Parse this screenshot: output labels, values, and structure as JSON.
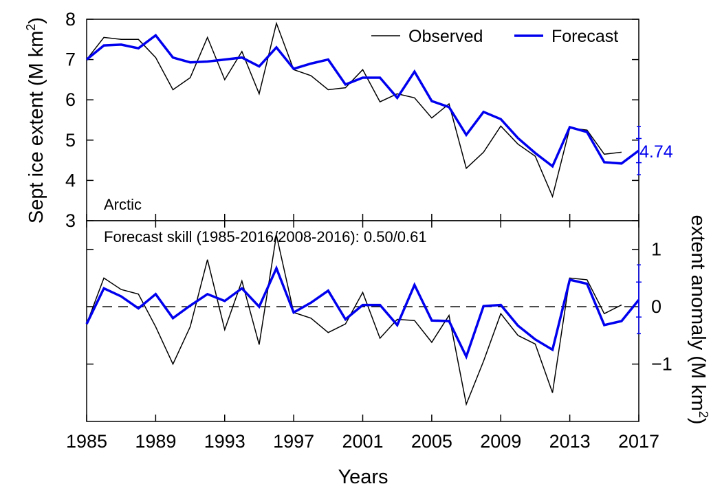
{
  "chart_data": {
    "type": "line",
    "xlabel": "Years",
    "x_ticks": [
      "1985",
      "1989",
      "1993",
      "1997",
      "2001",
      "2005",
      "2009",
      "2013",
      "2017"
    ],
    "xlim": [
      1985,
      2017
    ],
    "legend": {
      "placement": "top-right",
      "entries": [
        "Observed",
        "Forecast"
      ]
    },
    "colors": {
      "observed": "#000000",
      "forecast": "#0000ee",
      "axes": "#000000"
    },
    "top_panel": {
      "ylabel_main": "Sept ice extent (M km",
      "ylabel_sup": "2",
      "ylabel_tail": ")",
      "ylim": [
        3,
        8
      ],
      "y_ticks": [
        "3",
        "4",
        "5",
        "6",
        "7",
        "8"
      ],
      "panel_label": "Arctic",
      "forecast_value_label": "4.74",
      "series": [
        {
          "name": "Observed",
          "x": [
            1985,
            1986,
            1987,
            1988,
            1989,
            1990,
            1991,
            1992,
            1993,
            1994,
            1995,
            1996,
            1997,
            1998,
            1999,
            2000,
            2001,
            2002,
            2003,
            2004,
            2005,
            2006,
            2007,
            2008,
            2009,
            2010,
            2011,
            2012,
            2013,
            2014,
            2015,
            2016
          ],
          "values": [
            7.0,
            7.55,
            7.5,
            7.5,
            7.05,
            6.25,
            6.55,
            7.55,
            6.5,
            7.2,
            6.15,
            7.9,
            6.75,
            6.6,
            6.25,
            6.3,
            6.75,
            5.95,
            6.15,
            6.05,
            5.55,
            5.9,
            4.3,
            4.7,
            5.35,
            4.9,
            4.6,
            3.6,
            5.3,
            5.25,
            4.65,
            4.7
          ]
        },
        {
          "name": "Forecast",
          "x": [
            1985,
            1986,
            1987,
            1988,
            1989,
            1990,
            1991,
            1992,
            1993,
            1994,
            1995,
            1996,
            1997,
            1998,
            1999,
            2000,
            2001,
            2002,
            2003,
            2004,
            2005,
            2006,
            2007,
            2008,
            2009,
            2010,
            2011,
            2012,
            2013,
            2014,
            2015,
            2016,
            2017
          ],
          "values": [
            7.0,
            7.35,
            7.37,
            7.28,
            7.6,
            7.05,
            6.93,
            6.95,
            7.0,
            7.05,
            6.83,
            7.3,
            6.77,
            6.9,
            7.0,
            6.38,
            6.55,
            6.55,
            6.05,
            6.7,
            5.97,
            5.82,
            5.13,
            5.7,
            5.52,
            5.05,
            4.68,
            4.35,
            5.32,
            5.2,
            4.45,
            4.42,
            4.74
          ]
        }
      ],
      "error_bars": [
        {
          "x": 2017,
          "center": 4.74,
          "low": 4.14,
          "high": 5.34
        },
        {
          "x": 2017,
          "center": 4.74,
          "low": 4.44,
          "high": 5.04
        }
      ]
    },
    "bottom_panel": {
      "ylabel_main": "extent anomaly (M km",
      "ylabel_sup": "2",
      "ylabel_tail": ")",
      "ylim": [
        -2.0,
        1.5
      ],
      "y_ticks": [
        "1",
        "0",
        "−1"
      ],
      "y_tick_values": [
        1,
        0,
        -1
      ],
      "skill_text": "Forecast skill (1985-2016/2008-2016): 0.50/0.61",
      "zero_line": "dashed",
      "series": [
        {
          "name": "Observed",
          "x": [
            1985,
            1986,
            1987,
            1988,
            1989,
            1990,
            1991,
            1992,
            1993,
            1994,
            1995,
            1996,
            1997,
            1998,
            1999,
            2000,
            2001,
            2002,
            2003,
            2004,
            2005,
            2006,
            2007,
            2008,
            2009,
            2010,
            2011,
            2012,
            2013,
            2014,
            2015,
            2016
          ],
          "values": [
            -0.3,
            0.5,
            0.3,
            0.22,
            -0.35,
            -1.0,
            -0.35,
            0.82,
            -0.4,
            0.45,
            -0.66,
            1.25,
            -0.1,
            -0.2,
            -0.45,
            -0.3,
            0.25,
            -0.55,
            -0.22,
            -0.24,
            -0.62,
            -0.15,
            -1.7,
            -0.95,
            -0.12,
            -0.5,
            -0.65,
            -1.5,
            0.5,
            0.47,
            -0.12,
            0.03
          ]
        },
        {
          "name": "Forecast",
          "x": [
            1985,
            1986,
            1987,
            1988,
            1989,
            1990,
            1991,
            1992,
            1993,
            1994,
            1995,
            1996,
            1997,
            1998,
            1999,
            2000,
            2001,
            2002,
            2003,
            2004,
            2005,
            2006,
            2007,
            2008,
            2009,
            2010,
            2011,
            2012,
            2013,
            2014,
            2015,
            2016,
            2017
          ],
          "values": [
            -0.3,
            0.32,
            0.18,
            -0.03,
            0.22,
            -0.2,
            0.02,
            0.22,
            0.1,
            0.32,
            0.0,
            0.67,
            -0.1,
            0.07,
            0.28,
            -0.22,
            0.03,
            0.03,
            -0.32,
            0.38,
            -0.24,
            -0.25,
            -0.87,
            0.01,
            0.03,
            -0.33,
            -0.57,
            -0.75,
            0.47,
            0.4,
            -0.32,
            -0.25,
            0.12
          ]
        }
      ],
      "error_bars": [
        {
          "x": 2017,
          "center": 0.12,
          "low": -0.47,
          "high": 0.73
        },
        {
          "x": 2017,
          "center": 0.12,
          "low": -0.18,
          "high": 0.43
        }
      ]
    }
  }
}
